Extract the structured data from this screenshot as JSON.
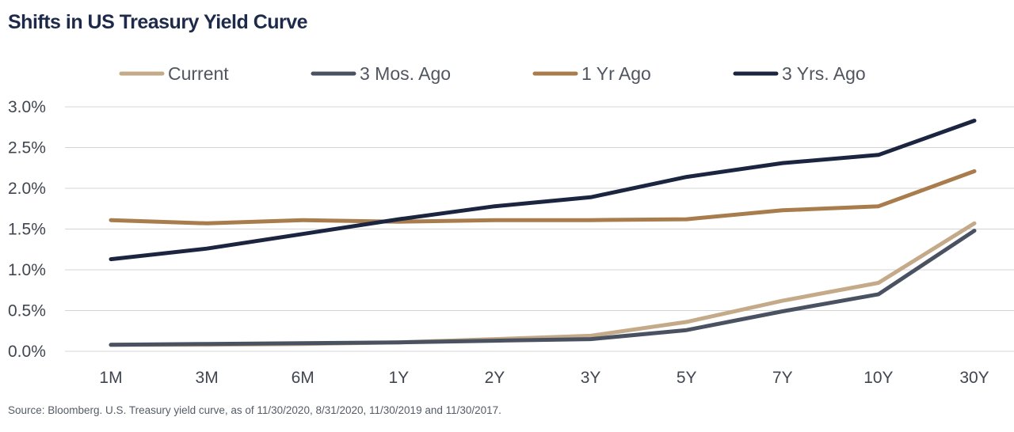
{
  "title": "Shifts in US Treasury Yield Curve",
  "source": "Source: Bloomberg. U.S. Treasury yield curve, as of 11/30/2020, 8/31/2020, 11/30/2019 and 11/30/2017.",
  "chart_data": {
    "type": "line",
    "title": "Shifts in US Treasury Yield Curve",
    "xlabel": "",
    "ylabel": "",
    "categories": [
      "1M",
      "3M",
      "6M",
      "1Y",
      "2Y",
      "3Y",
      "5Y",
      "7Y",
      "10Y",
      "30Y"
    ],
    "ylim": [
      0,
      3.0
    ],
    "yticks": [
      0.0,
      0.5,
      1.0,
      1.5,
      2.0,
      2.5,
      3.0
    ],
    "ytick_labels": [
      "0.0%",
      "0.5%",
      "1.0%",
      "1.5%",
      "2.0%",
      "2.5%",
      "3.0%"
    ],
    "grid": "horizontal",
    "legend_position": "top",
    "series": [
      {
        "name": "Current",
        "color": "#c4aa88",
        "values": [
          0.08,
          0.08,
          0.09,
          0.11,
          0.15,
          0.19,
          0.36,
          0.62,
          0.84,
          1.57
        ]
      },
      {
        "name": "3 Mos. Ago",
        "color": "#4a5262",
        "values": [
          0.08,
          0.09,
          0.1,
          0.11,
          0.13,
          0.15,
          0.26,
          0.49,
          0.7,
          1.48
        ]
      },
      {
        "name": "1 Yr Ago",
        "color": "#a87c4c",
        "values": [
          1.61,
          1.57,
          1.61,
          1.59,
          1.61,
          1.61,
          1.62,
          1.73,
          1.78,
          2.21
        ]
      },
      {
        "name": "3 Yrs. Ago",
        "color": "#1b2540",
        "values": [
          1.13,
          1.26,
          1.44,
          1.62,
          1.78,
          1.89,
          2.14,
          2.31,
          2.41,
          2.83
        ]
      }
    ]
  }
}
